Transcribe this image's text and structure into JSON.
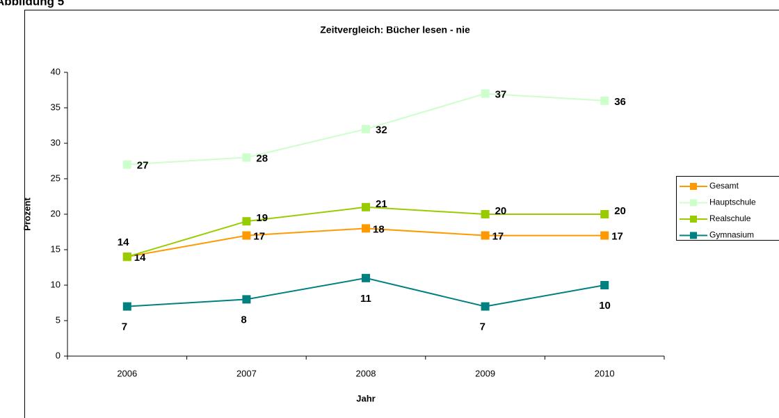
{
  "caption": "Abbildung 5",
  "chart_data": {
    "type": "line",
    "title": "Zeitvergleich: Bücher lesen - nie",
    "x_label": "Jahr",
    "y_label": "Prozent",
    "categories": [
      "2006",
      "2007",
      "2008",
      "2009",
      "2010"
    ],
    "series": [
      {
        "name": "Gesamt",
        "color": "#ff9900",
        "values": [
          14,
          17,
          18,
          17,
          17
        ]
      },
      {
        "name": "Hauptschule",
        "color": "#ccffcc",
        "values": [
          27,
          28,
          32,
          37,
          36
        ]
      },
      {
        "name": "Realschule",
        "color": "#99cc00",
        "values": [
          14,
          19,
          21,
          20,
          20
        ]
      },
      {
        "name": "Gymnasium",
        "color": "#008080",
        "values": [
          7,
          8,
          11,
          7,
          10
        ]
      }
    ],
    "ylim": [
      0,
      40
    ],
    "yticks": [
      0,
      5,
      10,
      15,
      20,
      25,
      30,
      35,
      40
    ],
    "grid": false,
    "legend": "right"
  }
}
